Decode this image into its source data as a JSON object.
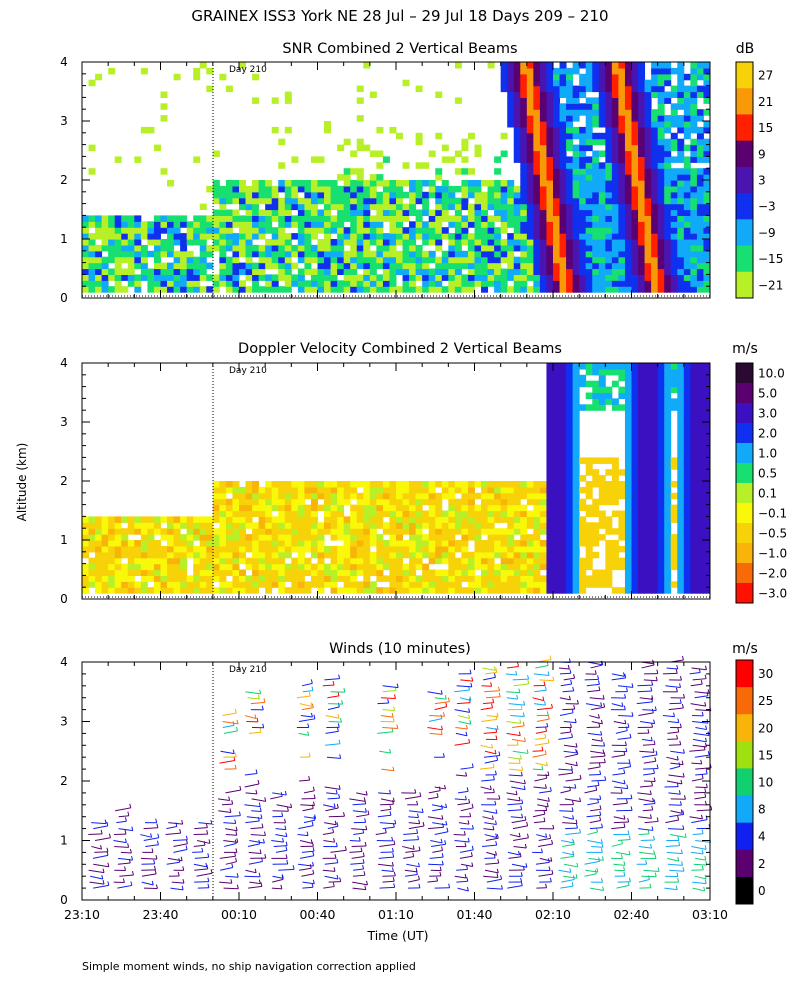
{
  "title": "GRAINEX ISS3 York NE  28 Jul – 29 Jul 18 Days 209 – 210",
  "footnote": "Simple moment winds, no ship navigation correction applied",
  "x_axis": {
    "label": "Time (UT)",
    "ticks": [
      "23:10",
      "23:40",
      "00:10",
      "00:40",
      "01:10",
      "01:40",
      "02:10",
      "02:40",
      "03:10"
    ],
    "range_minutes": [
      0,
      240
    ]
  },
  "y_axis": {
    "label": "Altitude (km)",
    "ticks": [
      "0",
      "1",
      "2",
      "3",
      "4"
    ],
    "range": [
      0,
      4
    ]
  },
  "day_marker": {
    "label": "Day 210",
    "time": "00:00",
    "minutes": 50
  },
  "chart_data": [
    {
      "type": "heatmap",
      "title": "SNR Combined 2 Vertical Beams",
      "colorbar": {
        "unit": "dB",
        "labels": [
          "27",
          "21",
          "15",
          "9",
          "3",
          "−3",
          "−9",
          "−15",
          "−21"
        ],
        "colors": [
          "#f8d208",
          "#f89a08",
          "#ff2000",
          "#5a0070",
          "#4a14b0",
          "#1030f0",
          "#10aaf8",
          "#18e070",
          "#b8f028"
        ]
      },
      "xlim_minutes": [
        0,
        240
      ],
      "ylim": [
        0,
        4
      ],
      "low_layer_top_km": {
        "before_day_210": 1.4,
        "after_day_210": 2.0
      },
      "precip_bands_minutes": [
        180,
        215
      ],
      "max_snr_db": 27,
      "min_snr_db": -21
    },
    {
      "type": "heatmap",
      "title": "Doppler Velocity Combined 2 Vertical Beams",
      "colorbar": {
        "unit": "m/s",
        "labels": [
          "10.0",
          "5.0",
          "3.0",
          "2.0",
          "1.0",
          "0.5",
          "0.1",
          "−0.1",
          "−0.5",
          "−1.0",
          "−2.0",
          "−3.0"
        ],
        "colors": [
          "#2a0a30",
          "#5a0070",
          "#3a10c0",
          "#1030f0",
          "#10aaf8",
          "#18e070",
          "#b8f028",
          "#f8f808",
          "#f8d208",
          "#f8b408",
          "#f86a08",
          "#ff1000"
        ]
      },
      "xlim_minutes": [
        0,
        240
      ],
      "ylim": [
        0,
        4
      ],
      "low_layer_top_km": {
        "before_day_210": 1.4,
        "after_day_210": 2.0
      },
      "precip_bands_minutes": [
        180,
        215,
        235
      ]
    },
    {
      "type": "scatter",
      "title": "Winds (10 minutes)",
      "colorbar": {
        "unit": "m/s",
        "labels": [
          "30",
          "25",
          "20",
          "15",
          "10",
          "8",
          "4",
          "2",
          "0"
        ],
        "colors": [
          "#ff0000",
          "#f86a08",
          "#f8b408",
          "#a0e010",
          "#10d070",
          "#10aaf8",
          "#1020f0",
          "#5a0070",
          "#000000"
        ]
      },
      "xlim_minutes": [
        0,
        240
      ],
      "ylim": [
        0,
        4
      ],
      "profile_times_minutes": [
        5,
        15,
        25,
        35,
        45,
        55,
        65,
        75,
        85,
        95,
        105,
        115,
        125,
        135,
        145,
        155,
        165,
        175,
        185,
        195,
        205,
        215,
        225,
        235
      ],
      "profile_tops_km": [
        1.4,
        1.6,
        1.4,
        1.4,
        1.4,
        3.2,
        3.6,
        1.9,
        3.7,
        3.8,
        1.9,
        3.7,
        1.9,
        3.6,
        3.9,
        4.0,
        4.0,
        4.1,
        4.1,
        4.1,
        3.9,
        4.1,
        4.1,
        4.0
      ]
    }
  ]
}
